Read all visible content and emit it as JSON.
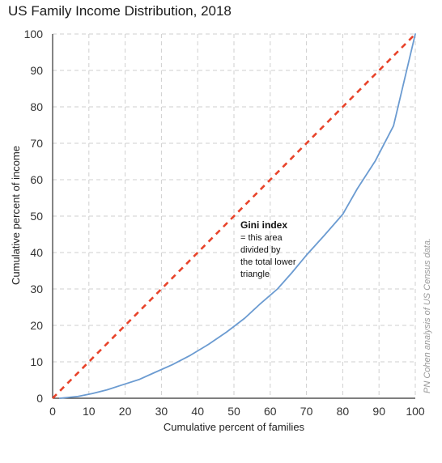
{
  "chart_data": {
    "type": "line",
    "title": "US Family Income Distribution, 2018",
    "xlabel": "Cumulative percent of families",
    "ylabel": "Cumulative percent of income",
    "xlim": [
      0,
      100
    ],
    "ylim": [
      0,
      100
    ],
    "x_ticks": [
      "0",
      "10",
      "20",
      "30",
      "40",
      "50",
      "60",
      "70",
      "80",
      "90",
      "100"
    ],
    "y_ticks": [
      "0",
      "10",
      "20",
      "30",
      "40",
      "50",
      "60",
      "70",
      "80",
      "90",
      "100"
    ],
    "grid": true,
    "series": [
      {
        "role": "equality",
        "color": "#e8432a",
        "style": "dashed",
        "x": [
          0,
          100
        ],
        "y": [
          0,
          100
        ]
      },
      {
        "role": "lorenz-curve",
        "color": "#6b9bd1",
        "style": "solid",
        "x": [
          2,
          4,
          7,
          11,
          15,
          19,
          24,
          28,
          33,
          38,
          43,
          48,
          53,
          57,
          62,
          66,
          70,
          75,
          80,
          84,
          89,
          94,
          100
        ],
        "y": [
          0,
          0.2,
          0.5,
          1.3,
          2.3,
          3.6,
          5.2,
          7.0,
          9.2,
          11.8,
          14.8,
          18.2,
          22.0,
          25.7,
          30.0,
          34.5,
          39.3,
          44.8,
          50.5,
          57.5,
          65.2,
          74.8,
          100
        ]
      }
    ],
    "annotation": {
      "heading": "Gini index",
      "lines": [
        "= this area",
        "divided by",
        "the total lower",
        "triangle"
      ]
    },
    "credit": "PN Cohen analysis of US Census data."
  }
}
